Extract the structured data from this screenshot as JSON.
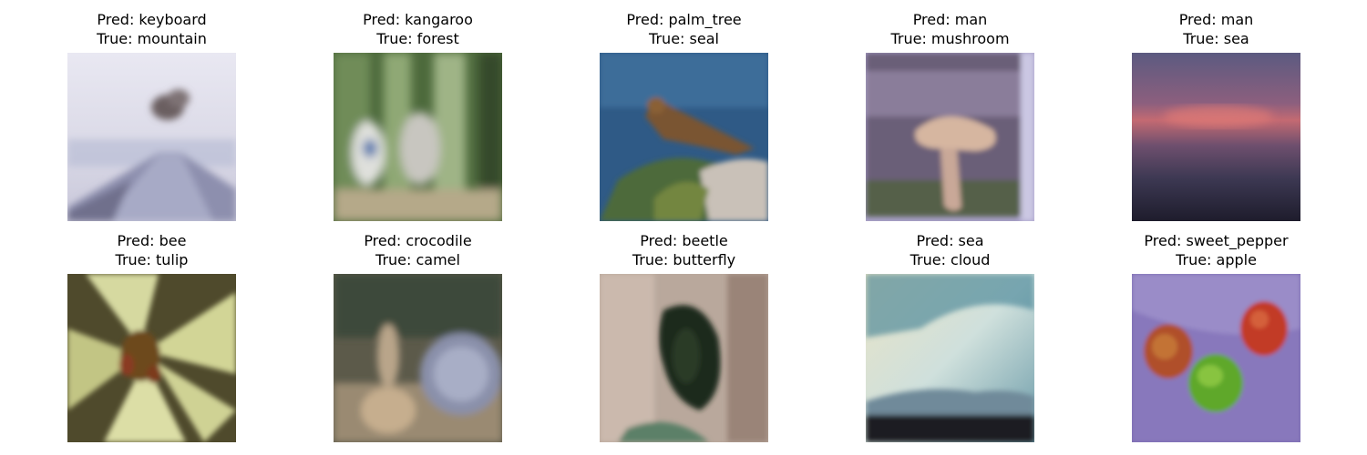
{
  "panels": [
    {
      "pred": "Pred: keyboard",
      "true": "True: mountain",
      "image_icon": "volcano-mountain-photo"
    },
    {
      "pred": "Pred: kangaroo",
      "true": "True: forest",
      "image_icon": "forest-people-photo"
    },
    {
      "pred": "Pred: palm_tree",
      "true": "True: seal",
      "image_icon": "seal-on-rock-photo"
    },
    {
      "pred": "Pred: man",
      "true": "True: mushroom",
      "image_icon": "mushroom-photo"
    },
    {
      "pred": "Pred: man",
      "true": "True: sea",
      "image_icon": "sunset-sea-photo"
    },
    {
      "pred": "Pred: bee",
      "true": "True: tulip",
      "image_icon": "lily-flower-photo"
    },
    {
      "pred": "Pred: crocodile",
      "true": "True: camel",
      "image_icon": "camel-photo"
    },
    {
      "pred": "Pred: beetle",
      "true": "True: butterfly",
      "image_icon": "butterfly-wing-photo"
    },
    {
      "pred": "Pred: sea",
      "true": "True: cloud",
      "image_icon": "cloudy-sky-photo"
    },
    {
      "pred": "Pred: sweet_pepper",
      "true": "True: apple",
      "image_icon": "three-apples-photo"
    }
  ]
}
